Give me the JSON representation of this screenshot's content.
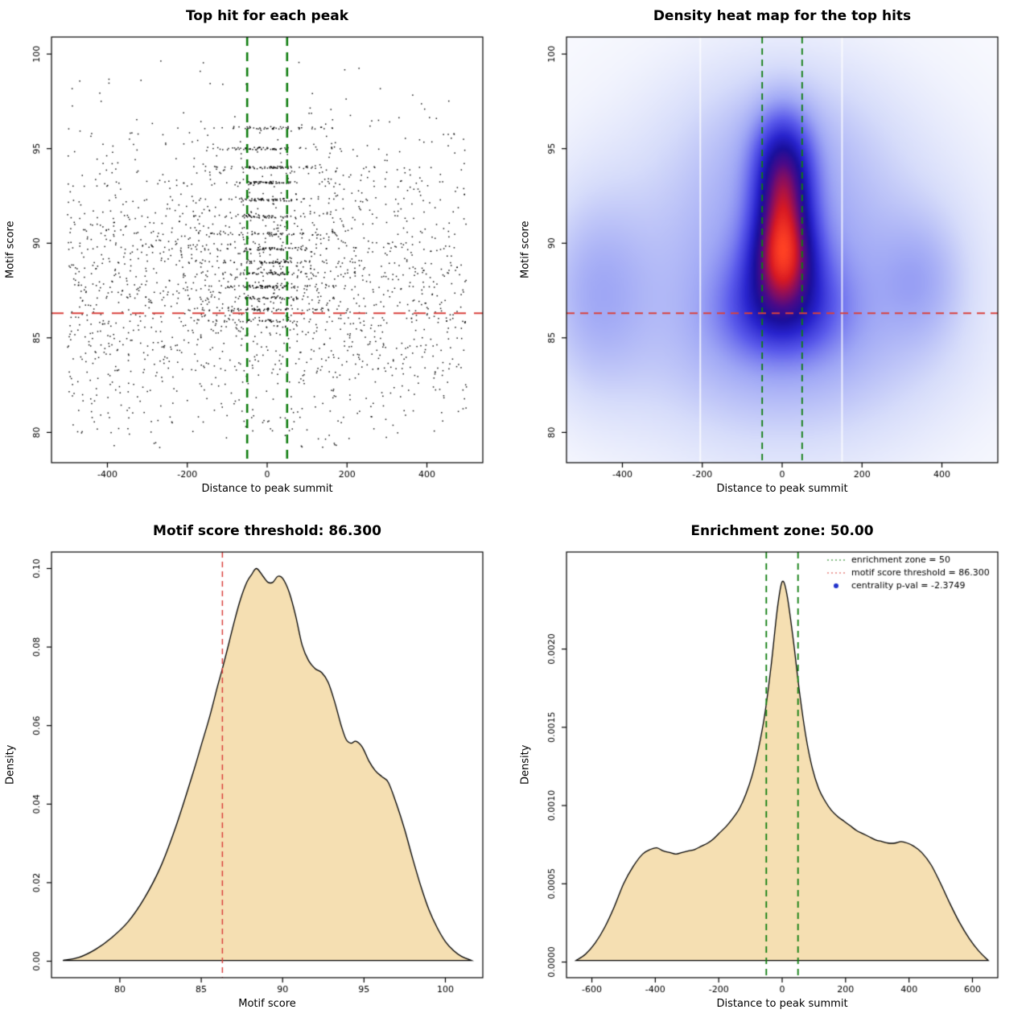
{
  "page": {
    "background": "#ffffff"
  },
  "chart_data": [
    {
      "type": "scatter",
      "title": "Top hit for each peak",
      "xlabel": "Distance to peak summit",
      "ylabel": "Motif score",
      "xlim": [
        -540,
        540
      ],
      "ylim": [
        78.4,
        100.9
      ],
      "xticks": [
        -400,
        -200,
        0,
        200,
        400
      ],
      "xtick_labels": [
        "-400",
        "-200",
        "0",
        "200",
        "400"
      ],
      "yticks": [
        80,
        85,
        90,
        95,
        100
      ],
      "ytick_labels": [
        "80",
        "85",
        "90",
        "95",
        "100"
      ],
      "point_color": "#000000",
      "enrichment_zone": [
        -50,
        50
      ],
      "score_threshold": 86.3,
      "zone_line_color": "#0f7d0f",
      "threshold_line_color": "#d9413d",
      "model": {
        "seed": 7,
        "background": {
          "n": 1850,
          "x": [
            -500,
            500
          ],
          "y_mean": 87.9,
          "y_sd": 4.4,
          "y_clip": [
            79.2,
            100
          ]
        },
        "central": {
          "n": 520,
          "x_sd": 95,
          "jitter": 0.07
        },
        "core": {
          "n": 300,
          "x_half_width": 55
        },
        "levels": [
          96.1,
          95.0,
          94.0,
          93.2,
          92.3,
          91.4,
          90.5,
          89.7,
          89.0,
          88.4,
          87.7,
          87.1,
          86.5,
          85.9
        ]
      }
    },
    {
      "type": "heatmap",
      "title": "Density heat map for the top hits",
      "xlabel": "Distance to peak summit",
      "ylabel": "Motif score",
      "xlim": [
        -540,
        540
      ],
      "ylim": [
        78.4,
        100.9
      ],
      "xticks": [
        -400,
        -200,
        0,
        200,
        400
      ],
      "xtick_labels": [
        "-400",
        "-200",
        "0",
        "200",
        "400"
      ],
      "yticks": [
        80,
        85,
        90,
        95,
        100
      ],
      "ytick_labels": [
        "80",
        "85",
        "90",
        "95",
        "100"
      ],
      "enrichment_zone": [
        -50,
        50
      ],
      "score_threshold": 86.3,
      "zone_line_color": "#0f7d0f",
      "threshold_line_color": "#d9413d",
      "hotspot": {
        "x": 0,
        "y": 89.4
      },
      "white_streaks": [
        -205,
        150
      ],
      "blobs": [
        {
          "x": 0,
          "y": 88.7,
          "sx": 430,
          "sy": 8.5,
          "w": 0.22
        },
        {
          "x": 0,
          "y": 88.5,
          "sx": 240,
          "sy": 5.2,
          "w": 0.45
        },
        {
          "x": -470,
          "y": 87.3,
          "sx": 95,
          "sy": 3.6,
          "w": 0.38
        },
        {
          "x": 350,
          "y": 88.0,
          "sx": 75,
          "sy": 2.4,
          "w": 0.28
        },
        {
          "x": 0,
          "y": 95.8,
          "sx": 160,
          "sy": 2.8,
          "w": 0.18
        },
        {
          "x": 2,
          "y": 94.6,
          "sx": 50,
          "sy": 1.9,
          "w": 0.75
        },
        {
          "x": 4,
          "y": 93.0,
          "sx": 46,
          "sy": 1.7,
          "w": 0.72
        },
        {
          "x": 2,
          "y": 91.2,
          "sx": 50,
          "sy": 1.7,
          "w": 0.78
        },
        {
          "x": 3,
          "y": 89.4,
          "sx": 52,
          "sy": 1.6,
          "w": 1.3
        },
        {
          "x": 0,
          "y": 87.5,
          "sx": 80,
          "sy": 1.7,
          "w": 0.75
        },
        {
          "x": 0,
          "y": 86.0,
          "sx": 100,
          "sy": 1.5,
          "w": 0.42
        },
        {
          "x": 0,
          "y": 83.5,
          "sx": 280,
          "sy": 2.6,
          "w": 0.12
        }
      ],
      "colormap": [
        [
          0.0,
          255,
          255,
          255
        ],
        [
          0.06,
          242,
          244,
          253
        ],
        [
          0.15,
          214,
          220,
          250
        ],
        [
          0.28,
          160,
          168,
          245
        ],
        [
          0.42,
          90,
          90,
          235
        ],
        [
          0.55,
          40,
          35,
          205
        ],
        [
          0.65,
          25,
          15,
          155
        ],
        [
          0.75,
          75,
          10,
          135
        ],
        [
          0.84,
          150,
          15,
          85
        ],
        [
          0.91,
          215,
          25,
          35
        ],
        [
          1.0,
          255,
          65,
          35
        ]
      ]
    },
    {
      "type": "density",
      "title": "Motif score threshold: 86.300",
      "xlabel": "Motif score",
      "ylabel": "Density",
      "xlim": [
        75.8,
        102.3
      ],
      "ylim": [
        -0.0042,
        0.1042
      ],
      "xticks": [
        80,
        85,
        90,
        95,
        100
      ],
      "xtick_labels": [
        "80",
        "85",
        "90",
        "95",
        "100"
      ],
      "yticks": [
        0.0,
        0.02,
        0.04,
        0.06,
        0.08,
        0.1
      ],
      "ytick_labels": [
        "0.00",
        "0.02",
        "0.04",
        "0.06",
        "0.08",
        "0.10"
      ],
      "fill_color": "#f5dfb2",
      "line_color": "#000000",
      "vlines": [
        {
          "x": 86.3,
          "color": "#d9413d",
          "dash": [
            7,
            5
          ],
          "width": 1.5
        }
      ],
      "curve": {
        "x": [
          76.5,
          77.5,
          78.5,
          79.5,
          80.5,
          81.5,
          82.5,
          83.5,
          84.5,
          85,
          85.5,
          86,
          86.3,
          86.7,
          87,
          87.4,
          87.8,
          88.1,
          88.4,
          88.8,
          89.1,
          89.4,
          89.7,
          90,
          90.4,
          90.8,
          91.2,
          91.6,
          92,
          92.4,
          92.8,
          93.2,
          93.6,
          93.9,
          94.2,
          94.5,
          94.9,
          95.3,
          95.7,
          96.1,
          96.5,
          97,
          97.5,
          98,
          98.5,
          99,
          99.5,
          100,
          100.5,
          101,
          101.6
        ],
        "y": [
          0.0002,
          0.001,
          0.003,
          0.006,
          0.01,
          0.016,
          0.024,
          0.035,
          0.048,
          0.055,
          0.062,
          0.07,
          0.0745,
          0.081,
          0.086,
          0.092,
          0.0965,
          0.0985,
          0.1,
          0.098,
          0.0965,
          0.0965,
          0.098,
          0.0975,
          0.094,
          0.088,
          0.0805,
          0.0765,
          0.0745,
          0.0735,
          0.071,
          0.066,
          0.06,
          0.0565,
          0.0555,
          0.056,
          0.0545,
          0.051,
          0.0485,
          0.047,
          0.0455,
          0.04,
          0.0335,
          0.026,
          0.019,
          0.013,
          0.0085,
          0.005,
          0.0027,
          0.0012,
          0.0002
        ]
      }
    },
    {
      "type": "density",
      "title": "Enrichment zone: 50.00",
      "xlabel": "Distance to peak summit",
      "ylabel": "Density",
      "xlim": [
        -680,
        680
      ],
      "ylim": [
        -0.0001,
        0.00262
      ],
      "xticks": [
        -600,
        -400,
        -200,
        0,
        200,
        400,
        600
      ],
      "xtick_labels": [
        "-600",
        "-400",
        "-200",
        "0",
        "200",
        "400",
        "600"
      ],
      "yticks": [
        0.0,
        0.0005,
        0.001,
        0.0015,
        0.002
      ],
      "ytick_labels": [
        "0.0000",
        "0.0005",
        "0.0010",
        "0.0015",
        "0.0020"
      ],
      "fill_color": "#f5dfb2",
      "line_color": "#000000",
      "vlines": [
        {
          "x": -50,
          "color": "#0f7d0f",
          "dash": [
            8,
            6
          ],
          "width": 1.8
        },
        {
          "x": 50,
          "color": "#0f7d0f",
          "dash": [
            8,
            6
          ],
          "width": 1.8
        }
      ],
      "curve": {
        "x": [
          -650,
          -620,
          -590,
          -560,
          -530,
          -500,
          -470,
          -440,
          -415,
          -395,
          -375,
          -355,
          -335,
          -315,
          -295,
          -275,
          -255,
          -235,
          -215,
          -195,
          -175,
          -155,
          -135,
          -115,
          -95,
          -75,
          -55,
          -35,
          -15,
          0,
          15,
          35,
          55,
          75,
          95,
          115,
          135,
          155,
          175,
          195,
          215,
          235,
          255,
          275,
          295,
          315,
          335,
          355,
          375,
          395,
          415,
          440,
          470,
          500,
          530,
          560,
          590,
          620,
          650
        ],
        "y": [
          1e-05,
          5e-05,
          0.00012,
          0.00022,
          0.00035,
          0.0005,
          0.00061,
          0.00069,
          0.00072,
          0.00073,
          0.00071,
          0.0007,
          0.00069,
          0.0007,
          0.00071,
          0.00072,
          0.00074,
          0.00076,
          0.00079,
          0.00083,
          0.00087,
          0.00092,
          0.00098,
          0.00107,
          0.00119,
          0.00136,
          0.00158,
          0.00189,
          0.00226,
          0.00243,
          0.00235,
          0.00206,
          0.00172,
          0.00144,
          0.00124,
          0.00111,
          0.00103,
          0.00097,
          0.00093,
          0.0009,
          0.00087,
          0.00084,
          0.00082,
          0.0008,
          0.00078,
          0.00077,
          0.00076,
          0.00076,
          0.00077,
          0.00076,
          0.00074,
          0.0007,
          0.00062,
          0.0005,
          0.00037,
          0.00025,
          0.00015,
          7e-05,
          1e-05
        ]
      },
      "legend": [
        {
          "marker": "dotted-line",
          "color": "#0f7d0f",
          "label": "enrichment zone = 50"
        },
        {
          "marker": "dotted-line",
          "color": "#d9413d",
          "label": "motif score threshold = 86.300"
        },
        {
          "marker": "dot",
          "color": "#2233cc",
          "label": "centrality p-val = -2.3749"
        }
      ]
    }
  ]
}
